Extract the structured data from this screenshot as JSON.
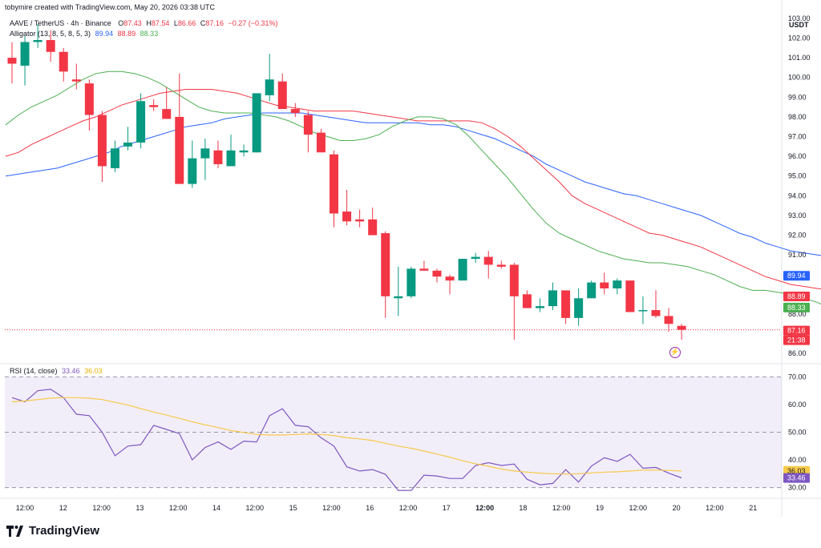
{
  "header": {
    "attribution": "tobymire created with TradingView.com, May 20, 2026 03:38 UTC"
  },
  "legend": {
    "symbol": "AAVE / TetherUS · 4h · Binance",
    "o_label": "O",
    "o": "87.43",
    "h_label": "H",
    "h": "87.54",
    "l_label": "L",
    "l": "86.66",
    "c_label": "C",
    "c": "87.16",
    "change": "−0.27 (−0.31%)",
    "alligator_label": "Alligator (13, 8, 5, 8, 5, 3)",
    "jaw": "89.94",
    "teeth": "88.89",
    "lips": "88.33"
  },
  "rsi_legend": {
    "label": "RSI (14, close)",
    "rsi": "33.46",
    "ma": "36.03"
  },
  "currency": "USDT",
  "badges": {
    "jaw": "89.94",
    "teeth": "88.89",
    "lips": "88.33",
    "price": "87.16",
    "countdown": "21:38",
    "rsi_ma": "36.03",
    "rsi": "33.46"
  },
  "branding": "TradingView",
  "colors": {
    "up": "#089981",
    "down": "#f23645",
    "jaw": "#2962ff",
    "teeth": "#f23645",
    "lips": "#4caf50",
    "rsi": "#7e57c2",
    "rsi_ma": "#f7c948"
  },
  "chart_data": {
    "type": "candlestick",
    "title": "AAVE / TetherUS · 4h · Binance",
    "price_ticks": [
      "103.00",
      "102.00",
      "101.00",
      "100.00",
      "99.00",
      "98.00",
      "97.00",
      "96.00",
      "95.00",
      "94.00",
      "93.00",
      "92.00",
      "91.00",
      "90.00",
      "89.00",
      "88.00",
      "87.00",
      "86.00"
    ],
    "ylim": [
      85.6,
      103.2
    ],
    "x_labels": [
      "12:00",
      "12",
      "12:00",
      "13",
      "12:00",
      "14",
      "12:00",
      "15",
      "12:00",
      "16",
      "12:00",
      "17",
      "12:00",
      "18",
      "12:00",
      "19",
      "12:00",
      "20",
      "12:00",
      "21"
    ],
    "x_label_bold_index": 12,
    "candles": [
      {
        "o": 101.0,
        "h": 101.8,
        "l": 99.7,
        "c": 100.7
      },
      {
        "o": 100.6,
        "h": 102.1,
        "l": 99.6,
        "c": 101.8
      },
      {
        "o": 101.8,
        "h": 102.7,
        "l": 101.5,
        "c": 101.9
      },
      {
        "o": 101.9,
        "h": 102.4,
        "l": 100.8,
        "c": 101.3
      },
      {
        "o": 101.3,
        "h": 101.5,
        "l": 99.8,
        "c": 100.3
      },
      {
        "o": 99.9,
        "h": 100.7,
        "l": 99.4,
        "c": 99.8
      },
      {
        "o": 99.7,
        "h": 99.9,
        "l": 97.3,
        "c": 98.1
      },
      {
        "o": 98.1,
        "h": 98.3,
        "l": 94.7,
        "c": 95.5
      },
      {
        "o": 95.4,
        "h": 96.8,
        "l": 95.2,
        "c": 96.4
      },
      {
        "o": 96.5,
        "h": 97.5,
        "l": 96.3,
        "c": 96.7
      },
      {
        "o": 96.7,
        "h": 99.2,
        "l": 96.4,
        "c": 98.8
      },
      {
        "o": 98.6,
        "h": 98.9,
        "l": 98.3,
        "c": 98.5
      },
      {
        "o": 98.4,
        "h": 99.5,
        "l": 97.9,
        "c": 97.9
      },
      {
        "o": 98.0,
        "h": 100.2,
        "l": 94.6,
        "c": 94.6
      },
      {
        "o": 94.6,
        "h": 96.8,
        "l": 94.4,
        "c": 95.9
      },
      {
        "o": 95.9,
        "h": 96.9,
        "l": 94.8,
        "c": 96.4
      },
      {
        "o": 96.3,
        "h": 96.8,
        "l": 95.4,
        "c": 95.6
      },
      {
        "o": 95.5,
        "h": 97.1,
        "l": 95.5,
        "c": 96.3
      },
      {
        "o": 96.2,
        "h": 96.6,
        "l": 96.0,
        "c": 96.3
      },
      {
        "o": 96.2,
        "h": 99.2,
        "l": 96.2,
        "c": 99.2
      },
      {
        "o": 99.1,
        "h": 101.2,
        "l": 98.8,
        "c": 99.9
      },
      {
        "o": 99.8,
        "h": 100.2,
        "l": 98.4,
        "c": 98.4
      },
      {
        "o": 98.4,
        "h": 98.7,
        "l": 98.0,
        "c": 98.2
      },
      {
        "o": 98.1,
        "h": 98.3,
        "l": 96.2,
        "c": 97.1
      },
      {
        "o": 97.2,
        "h": 97.4,
        "l": 96.2,
        "c": 96.2
      },
      {
        "o": 96.1,
        "h": 96.3,
        "l": 92.4,
        "c": 93.1
      },
      {
        "o": 93.2,
        "h": 94.3,
        "l": 92.5,
        "c": 92.7
      },
      {
        "o": 92.8,
        "h": 93.3,
        "l": 92.4,
        "c": 92.7
      },
      {
        "o": 92.8,
        "h": 93.4,
        "l": 92.0,
        "c": 92.0
      },
      {
        "o": 92.1,
        "h": 92.2,
        "l": 87.8,
        "c": 88.9
      },
      {
        "o": 88.8,
        "h": 90.4,
        "l": 87.9,
        "c": 88.9
      },
      {
        "o": 88.9,
        "h": 90.4,
        "l": 88.8,
        "c": 90.3
      },
      {
        "o": 90.3,
        "h": 90.7,
        "l": 90.2,
        "c": 90.2
      },
      {
        "o": 90.2,
        "h": 90.3,
        "l": 89.6,
        "c": 89.9
      },
      {
        "o": 89.9,
        "h": 90.0,
        "l": 89.0,
        "c": 89.7
      },
      {
        "o": 89.7,
        "h": 90.8,
        "l": 89.7,
        "c": 90.8
      },
      {
        "o": 90.8,
        "h": 91.1,
        "l": 90.6,
        "c": 90.9
      },
      {
        "o": 90.9,
        "h": 91.2,
        "l": 89.8,
        "c": 90.5
      },
      {
        "o": 90.5,
        "h": 90.7,
        "l": 90.3,
        "c": 90.4
      },
      {
        "o": 90.5,
        "h": 90.6,
        "l": 86.7,
        "c": 88.9
      },
      {
        "o": 89.0,
        "h": 89.2,
        "l": 88.3,
        "c": 88.3
      },
      {
        "o": 88.3,
        "h": 88.8,
        "l": 88.1,
        "c": 88.4
      },
      {
        "o": 88.4,
        "h": 89.6,
        "l": 88.2,
        "c": 89.2
      },
      {
        "o": 89.2,
        "h": 89.2,
        "l": 87.5,
        "c": 87.8
      },
      {
        "o": 87.8,
        "h": 89.3,
        "l": 87.4,
        "c": 88.8
      },
      {
        "o": 88.8,
        "h": 89.7,
        "l": 88.8,
        "c": 89.6
      },
      {
        "o": 89.6,
        "h": 90.1,
        "l": 89.0,
        "c": 89.3
      },
      {
        "o": 89.3,
        "h": 89.8,
        "l": 89.0,
        "c": 89.7
      },
      {
        "o": 89.7,
        "h": 89.7,
        "l": 88.1,
        "c": 88.1
      },
      {
        "o": 88.2,
        "h": 88.9,
        "l": 87.5,
        "c": 88.2
      },
      {
        "o": 88.2,
        "h": 89.2,
        "l": 87.8,
        "c": 87.9
      },
      {
        "o": 87.9,
        "h": 88.3,
        "l": 87.1,
        "c": 87.5
      },
      {
        "o": 87.4,
        "h": 87.5,
        "l": 86.7,
        "c": 87.2
      }
    ],
    "alligator": {
      "jaw": [
        95.0,
        95.1,
        95.2,
        95.3,
        95.4,
        95.6,
        95.8,
        96.0,
        96.2,
        96.5,
        96.7,
        96.9,
        97.1,
        97.3,
        97.5,
        97.6,
        97.7,
        97.9,
        98.0,
        98.1,
        98.2,
        98.2,
        98.2,
        98.2,
        98.1,
        98.0,
        97.9,
        97.8,
        97.7,
        97.7,
        97.7,
        97.7,
        97.7,
        97.6,
        97.6,
        97.5,
        97.3,
        97.1,
        96.9,
        96.6,
        96.3,
        96.0,
        95.6,
        95.3,
        95.0,
        94.7,
        94.5,
        94.3,
        94.1,
        94.0,
        93.8,
        93.6,
        93.4,
        93.2,
        93.0,
        92.7,
        92.4,
        92.1,
        91.9,
        91.6,
        91.4,
        91.2,
        91.1,
        91.0,
        90.9,
        90.8,
        90.7,
        90.5,
        90.4,
        90.2,
        90.0
      ],
      "teeth": [
        96.0,
        96.2,
        96.6,
        96.9,
        97.2,
        97.5,
        97.8,
        98.0,
        98.3,
        98.6,
        98.8,
        99.0,
        99.2,
        99.3,
        99.4,
        99.4,
        99.4,
        99.3,
        99.2,
        99.0,
        98.8,
        98.6,
        98.5,
        98.4,
        98.3,
        98.3,
        98.3,
        98.3,
        98.2,
        98.1,
        98.0,
        97.9,
        97.8,
        97.8,
        97.8,
        97.8,
        97.8,
        97.7,
        97.4,
        97.0,
        96.5,
        95.9,
        95.3,
        94.7,
        94.0,
        93.6,
        93.3,
        93.0,
        92.7,
        92.4,
        92.1,
        92.0,
        91.8,
        91.6,
        91.4,
        91.1,
        90.8,
        90.5,
        90.2,
        89.9,
        89.7,
        89.5,
        89.4,
        89.3,
        89.2,
        89.1,
        88.9,
        88.7
      ],
      "lips": [
        97.6,
        98.1,
        98.5,
        98.8,
        99.1,
        99.5,
        99.9,
        100.2,
        100.3,
        100.3,
        100.2,
        100.0,
        99.7,
        99.3,
        98.9,
        98.5,
        98.3,
        98.2,
        98.2,
        98.2,
        98.1,
        98.0,
        97.8,
        97.5,
        97.2,
        97.0,
        96.8,
        96.8,
        96.9,
        97.1,
        97.5,
        97.8,
        98.0,
        98.0,
        97.9,
        97.6,
        97.0,
        96.3,
        95.6,
        94.9,
        94.1,
        93.3,
        92.6,
        92.1,
        91.8,
        91.5,
        91.2,
        91.0,
        90.8,
        90.7,
        90.6,
        90.6,
        90.5,
        90.4,
        90.2,
        90.0,
        89.7,
        89.4,
        89.2,
        89.2,
        89.1,
        89.0,
        88.8,
        88.6,
        88.3
      ]
    },
    "rsi": {
      "label": "RSI (14, close)",
      "ticks": [
        "70.00",
        "60.00",
        "50.00",
        "40.00",
        "30.00"
      ],
      "ylim": [
        26.7,
        73.3
      ],
      "band": [
        30,
        70
      ],
      "midline": 50,
      "rsi": [
        62.5,
        61.0,
        65.0,
        65.5,
        62.5,
        56.5,
        56.0,
        50.0,
        41.5,
        45.0,
        45.5,
        52.5,
        51.0,
        49.5,
        40.0,
        44.5,
        46.5,
        43.8,
        46.8,
        46.5,
        56.0,
        58.5,
        52.5,
        52.0,
        48.0,
        45.0,
        37.5,
        36.0,
        36.5,
        34.8,
        29.0,
        29.0,
        34.5,
        34.2,
        33.3,
        33.3,
        38.0,
        39.0,
        38.0,
        38.5,
        33.0,
        31.0,
        31.5,
        36.5,
        32.0,
        37.8,
        40.8,
        39.5,
        42.0,
        37.0,
        37.3,
        35.2,
        33.5
      ],
      "ma": [
        61.0,
        61.3,
        61.8,
        62.3,
        62.5,
        62.5,
        62.3,
        61.8,
        60.8,
        59.8,
        58.5,
        57.3,
        56.2,
        55.0,
        53.8,
        52.7,
        51.7,
        50.6,
        49.9,
        49.2,
        49.0,
        49.0,
        49.2,
        49.4,
        49.2,
        48.8,
        48.0,
        47.6,
        47.0,
        46.0,
        45.0,
        44.2,
        43.2,
        42.1,
        41.0,
        39.7,
        38.6,
        37.7,
        36.7,
        36.0,
        35.6,
        35.2,
        35.0,
        34.9,
        35.0,
        35.3,
        35.6,
        35.7,
        36.0,
        36.3,
        36.3,
        36.2,
        36.0
      ]
    }
  }
}
